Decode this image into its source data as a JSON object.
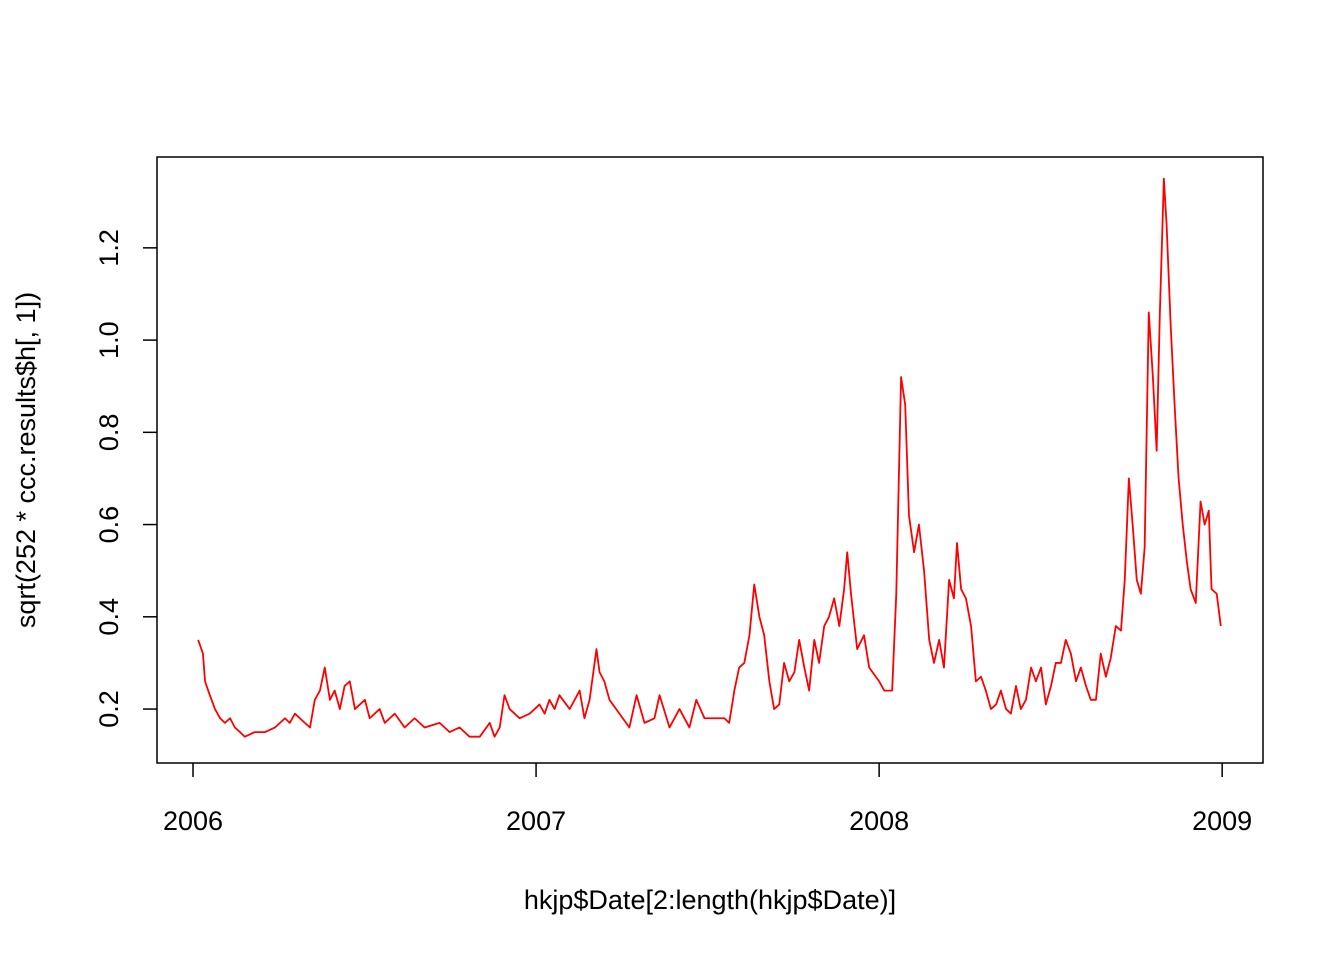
{
  "chart_data": {
    "type": "line",
    "x_label": "hkjp$Date[2:length(hkjp$Date)]",
    "y_label": "sqrt(252 * ccc.results$h[, 1])",
    "color": "#ff0000",
    "xlim": [
      2005.895,
      2009.119
    ],
    "ylim": [
      0.083,
      1.397
    ],
    "xticks": [
      2006,
      2007,
      2008,
      2009
    ],
    "yticks": [
      0.2,
      0.4,
      0.6,
      0.8,
      {
        "value": 1,
        "label": "1.0"
      },
      1.2
    ],
    "x": [
      2006.015,
      2006.029,
      2006.035,
      2006.049,
      2006.064,
      2006.079,
      2006.093,
      2006.108,
      2006.122,
      2006.137,
      2006.151,
      2006.18,
      2006.21,
      2006.239,
      2006.268,
      2006.282,
      2006.297,
      2006.326,
      2006.341,
      2006.355,
      2006.37,
      2006.384,
      2006.399,
      2006.413,
      2006.428,
      2006.442,
      2006.457,
      2006.472,
      2006.501,
      2006.515,
      2006.544,
      2006.559,
      2006.588,
      2006.617,
      2006.646,
      2006.675,
      2006.719,
      2006.748,
      2006.777,
      2006.806,
      2006.836,
      2006.865,
      2006.879,
      2006.894,
      2006.908,
      2006.923,
      2006.952,
      2006.981,
      2006.996,
      2007.01,
      2007.025,
      2007.039,
      2007.054,
      2007.068,
      2007.098,
      2007.127,
      2007.141,
      2007.156,
      2007.176,
      2007.185,
      2007.199,
      2007.214,
      2007.243,
      2007.272,
      2007.293,
      2007.316,
      2007.345,
      2007.36,
      2007.389,
      2007.418,
      2007.447,
      2007.467,
      2007.491,
      2007.52,
      2007.549,
      2007.563,
      2007.578,
      2007.592,
      2007.607,
      2007.622,
      2007.636,
      2007.651,
      2007.665,
      2007.68,
      2007.694,
      2007.709,
      2007.723,
      2007.738,
      2007.753,
      2007.767,
      2007.782,
      2007.796,
      2007.811,
      2007.825,
      2007.84,
      2007.854,
      2007.869,
      2007.884,
      2007.898,
      2007.907,
      2007.918,
      2007.936,
      2007.956,
      2007.971,
      2008.0,
      2008.015,
      2008.038,
      2008.05,
      2008.064,
      2008.076,
      2008.087,
      2008.102,
      2008.116,
      2008.131,
      2008.146,
      2008.16,
      2008.175,
      2008.189,
      2008.204,
      2008.218,
      2008.227,
      2008.239,
      2008.253,
      2008.268,
      2008.282,
      2008.297,
      2008.311,
      2008.326,
      2008.341,
      2008.355,
      2008.37,
      2008.384,
      2008.399,
      2008.413,
      2008.428,
      2008.443,
      2008.457,
      2008.472,
      2008.486,
      2008.501,
      2008.515,
      2008.53,
      2008.544,
      2008.559,
      2008.574,
      2008.588,
      2008.603,
      2008.617,
      2008.632,
      2008.646,
      2008.661,
      2008.675,
      2008.69,
      2008.705,
      2008.716,
      2008.728,
      2008.739,
      2008.751,
      2008.763,
      2008.774,
      2008.786,
      2008.798,
      2008.809,
      2008.818,
      2008.83,
      2008.838,
      2008.85,
      2008.862,
      2008.873,
      2008.885,
      2008.897,
      2008.908,
      2008.923,
      2008.937,
      2008.949,
      2008.961,
      2008.969,
      2008.984,
      2008.996
    ],
    "values": [
      0.35,
      0.32,
      0.26,
      0.23,
      0.2,
      0.18,
      0.17,
      0.18,
      0.16,
      0.15,
      0.14,
      0.15,
      0.15,
      0.16,
      0.18,
      0.17,
      0.19,
      0.17,
      0.16,
      0.22,
      0.24,
      0.29,
      0.22,
      0.24,
      0.2,
      0.25,
      0.26,
      0.2,
      0.22,
      0.18,
      0.2,
      0.17,
      0.19,
      0.16,
      0.18,
      0.16,
      0.17,
      0.15,
      0.16,
      0.14,
      0.14,
      0.17,
      0.14,
      0.16,
      0.23,
      0.2,
      0.18,
      0.19,
      0.2,
      0.21,
      0.19,
      0.22,
      0.2,
      0.23,
      0.2,
      0.24,
      0.18,
      0.22,
      0.33,
      0.28,
      0.26,
      0.22,
      0.19,
      0.16,
      0.23,
      0.17,
      0.18,
      0.23,
      0.16,
      0.2,
      0.16,
      0.22,
      0.18,
      0.18,
      0.18,
      0.17,
      0.24,
      0.29,
      0.3,
      0.36,
      0.47,
      0.4,
      0.36,
      0.26,
      0.2,
      0.21,
      0.3,
      0.26,
      0.28,
      0.35,
      0.29,
      0.24,
      0.35,
      0.3,
      0.38,
      0.4,
      0.44,
      0.38,
      0.46,
      0.54,
      0.45,
      0.33,
      0.36,
      0.29,
      0.26,
      0.24,
      0.24,
      0.45,
      0.92,
      0.86,
      0.62,
      0.54,
      0.6,
      0.5,
      0.35,
      0.3,
      0.35,
      0.29,
      0.48,
      0.44,
      0.56,
      0.46,
      0.44,
      0.38,
      0.26,
      0.27,
      0.24,
      0.2,
      0.21,
      0.24,
      0.2,
      0.19,
      0.25,
      0.2,
      0.22,
      0.29,
      0.26,
      0.29,
      0.21,
      0.25,
      0.3,
      0.3,
      0.35,
      0.32,
      0.26,
      0.29,
      0.25,
      0.22,
      0.22,
      0.32,
      0.27,
      0.31,
      0.38,
      0.37,
      0.48,
      0.7,
      0.6,
      0.48,
      0.45,
      0.55,
      1.06,
      0.92,
      0.76,
      1.05,
      1.35,
      1.25,
      1.03,
      0.85,
      0.7,
      0.6,
      0.52,
      0.46,
      0.43,
      0.65,
      0.6,
      0.63,
      0.46,
      0.45,
      0.38
    ]
  }
}
